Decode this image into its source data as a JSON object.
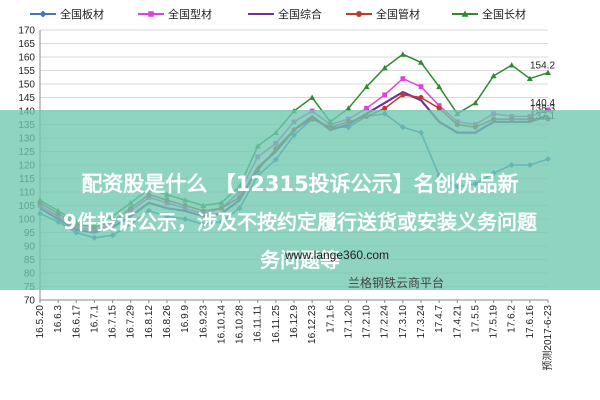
{
  "chart_data": {
    "type": "line",
    "title": "",
    "xlabel": "",
    "ylabel": "",
    "ylim": [
      70,
      170
    ],
    "yticks": [
      70,
      75,
      80,
      85,
      90,
      95,
      100,
      105,
      110,
      115,
      120,
      125,
      130,
      135,
      140,
      145,
      150,
      155,
      160,
      165,
      170
    ],
    "grid": true,
    "legend": "top",
    "x": [
      "16.5.20",
      "16.6.3",
      "16.6.17",
      "16.7.1",
      "16.7.15",
      "16.7.29",
      "16.8.12",
      "16.8.26",
      "16.9.9",
      "16.9.23",
      "16.10.14",
      "16.10.28",
      "16.11.11",
      "16.11.25",
      "16.12.9",
      "16.12.23",
      "17.1.6",
      "17.1.20",
      "17.2.10",
      "17.2.24",
      "17.3.10",
      "17.3.24",
      "17.4.7",
      "17.4.21",
      "17.5.5",
      "17.5.19",
      "17.6.2",
      "17.6.16",
      "预测2017-6-23"
    ],
    "series": [
      {
        "name": "全国板材",
        "color": "#4472c4",
        "marker": "diamond",
        "values": [
          102,
          99,
          95,
          93,
          94,
          98,
          103,
          101,
          100,
          98,
          99,
          104,
          116,
          122,
          131,
          137,
          134,
          134,
          138,
          139,
          134,
          132,
          116,
          112,
          113,
          117,
          120,
          120,
          122.2
        ]
      },
      {
        "name": "全国型材",
        "color": "#e040e0",
        "marker": "square",
        "values": [
          105,
          101,
          97,
          96,
          98,
          103,
          108,
          106,
          104,
          102,
          104,
          110,
          123,
          128,
          136,
          140,
          135,
          137,
          141,
          146,
          152,
          149,
          142,
          136,
          135,
          139,
          138,
          138,
          140.4
        ]
      },
      {
        "name": "全国综合",
        "color": "#7030a0",
        "marker": "none",
        "values": [
          104,
          100,
          96,
          95,
          97,
          101,
          106,
          104,
          103,
          101,
          102,
          107,
          119,
          125,
          133,
          138,
          133,
          135,
          139,
          143,
          147,
          144,
          136,
          132,
          132,
          136,
          136,
          136,
          138.3
        ]
      },
      {
        "name": "全国管材",
        "color": "#c0392b",
        "marker": "circle",
        "values": [
          106,
          102,
          98,
          97,
          99,
          104,
          109,
          107,
          105,
          103,
          104,
          108,
          118,
          126,
          133,
          137,
          134,
          136,
          138,
          141,
          146,
          145,
          141,
          135,
          134,
          137,
          137,
          137,
          137.1
        ]
      },
      {
        "name": "全国长材",
        "color": "#2e8b2e",
        "marker": "triangle",
        "values": [
          107,
          103,
          99,
          98,
          101,
          106,
          111,
          109,
          107,
          105,
          106,
          112,
          127,
          132,
          140,
          145,
          136,
          141,
          149,
          156,
          161,
          158,
          149,
          139,
          143,
          153,
          157,
          152,
          154.2
        ]
      }
    ]
  },
  "end_labels": [
    "154.2",
    "140.4",
    "138.3",
    "137.1"
  ],
  "banner": {
    "line1": "配资股是什么 【12315投诉公示】名创优品新",
    "line2": "9件投诉公示，涉及不按约定履行送货或安装义务问题",
    "line3": "务问题等"
  },
  "watermark": {
    "url": "www.lange360.com",
    "name": "兰格钢铁云商平台"
  }
}
